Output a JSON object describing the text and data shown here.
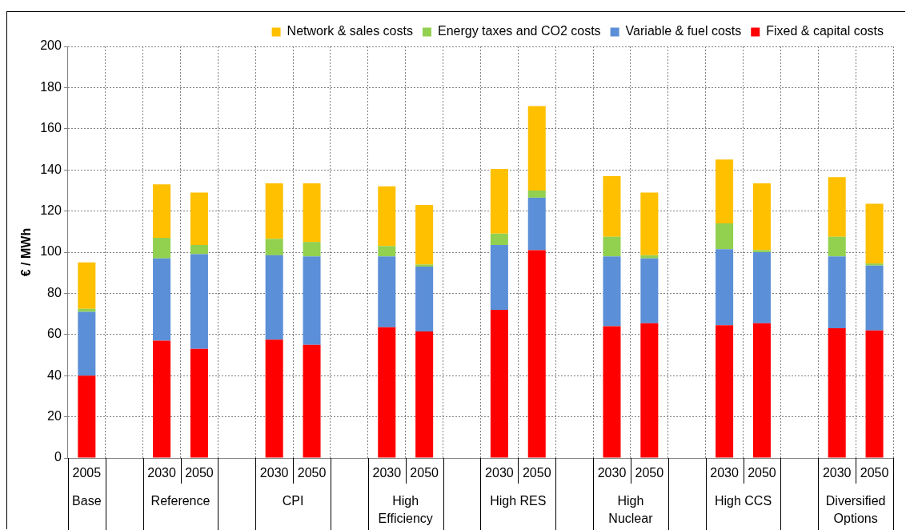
{
  "chart_data": {
    "type": "bar",
    "stacked": true,
    "ylabel": "€ / MWh",
    "categories": [
      "2005",
      null,
      "2030",
      "2050",
      null,
      "2030",
      "2050",
      null,
      "2030",
      "2050",
      null,
      "2030",
      "2050",
      null,
      "2030",
      "2050",
      null,
      "2030",
      "2050",
      null,
      "2030",
      "2050"
    ],
    "annotations": [
      "Base",
      "Reference",
      "CPI",
      "High Efficiency",
      "High RES",
      "High Nuclear",
      "High CCS",
      "Diversified Options"
    ],
    "series": [
      {
        "name": "Fixed & capital costs",
        "color": "#ff0000",
        "values": [
          40,
          null,
          57,
          53,
          null,
          57.5,
          55,
          null,
          63.5,
          61.5,
          null,
          72,
          101,
          null,
          64,
          65.5,
          null,
          64.5,
          65.5,
          null,
          63,
          62
        ]
      },
      {
        "name": "Variable & fuel costs",
        "color": "#5b8fd7",
        "values": [
          31,
          null,
          40,
          46,
          null,
          41,
          43,
          null,
          34.5,
          31.5,
          null,
          31.5,
          25.5,
          null,
          34,
          31.5,
          null,
          37,
          34.5,
          null,
          35,
          31.5
        ]
      },
      {
        "name": "Energy taxes and CO2 costs",
        "color": "#92d050",
        "values": [
          1.5,
          null,
          10,
          4.5,
          null,
          8,
          7,
          null,
          5,
          1,
          null,
          5.5,
          3.5,
          null,
          9.5,
          1.5,
          null,
          12.5,
          1,
          null,
          9.5,
          1
        ]
      },
      {
        "name": "Network & sales costs",
        "color": "#ffc000",
        "values": [
          22.5,
          null,
          26,
          25.5,
          null,
          27,
          28.5,
          null,
          29,
          29,
          null,
          31.5,
          41,
          null,
          29.5,
          30.5,
          null,
          31,
          32.5,
          null,
          29,
          29
        ]
      }
    ],
    "ylim": [
      0,
      200
    ],
    "yticks": [
      0,
      20,
      40,
      60,
      80,
      100,
      120,
      140,
      160,
      180,
      200
    ],
    "grid": true,
    "legend": "top"
  }
}
